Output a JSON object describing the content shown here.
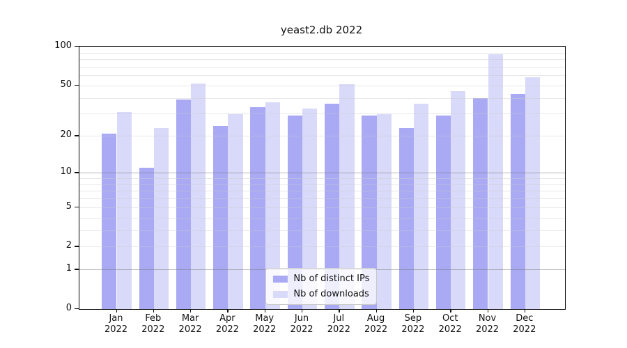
{
  "title": "yeast2.db 2022",
  "chart_data": {
    "type": "bar",
    "title": "yeast2.db 2022",
    "categories": [
      "Jan",
      "Feb",
      "Mar",
      "Apr",
      "May",
      "Jun",
      "Jul",
      "Aug",
      "Sep",
      "Oct",
      "Nov",
      "Dec"
    ],
    "category_year": "2022",
    "series": [
      {
        "name": "Nb of distinct IPs",
        "color": "#a9a9f4",
        "values": [
          21,
          11,
          39,
          24,
          34,
          29,
          36,
          29,
          23,
          29,
          40,
          43
        ]
      },
      {
        "name": "Nb of downloads",
        "color": "#d9d9f9",
        "values": [
          31,
          23,
          52,
          30,
          37,
          33,
          51,
          30,
          36,
          45,
          87,
          58
        ]
      }
    ],
    "xlabel": "",
    "ylabel": "",
    "yscale": "log1p",
    "ylim": [
      0,
      100
    ],
    "ytick_values": [
      0,
      1,
      2,
      5,
      10,
      20,
      50,
      100
    ],
    "major_grid_values": [
      1,
      10,
      100
    ],
    "minor_grid_values": [
      2,
      3,
      4,
      5,
      6,
      7,
      8,
      9,
      20,
      30,
      40,
      50,
      60,
      70,
      80,
      90
    ],
    "grid": true,
    "legend_position": "lower center"
  },
  "colors": {
    "bar_distinct_ips": "#a9a9f4",
    "bar_downloads": "#d9d9f9",
    "minor_grid": "#e6e6e6",
    "major_grid": "#a8a8a8",
    "axis": "#000000",
    "text": "#111111"
  }
}
